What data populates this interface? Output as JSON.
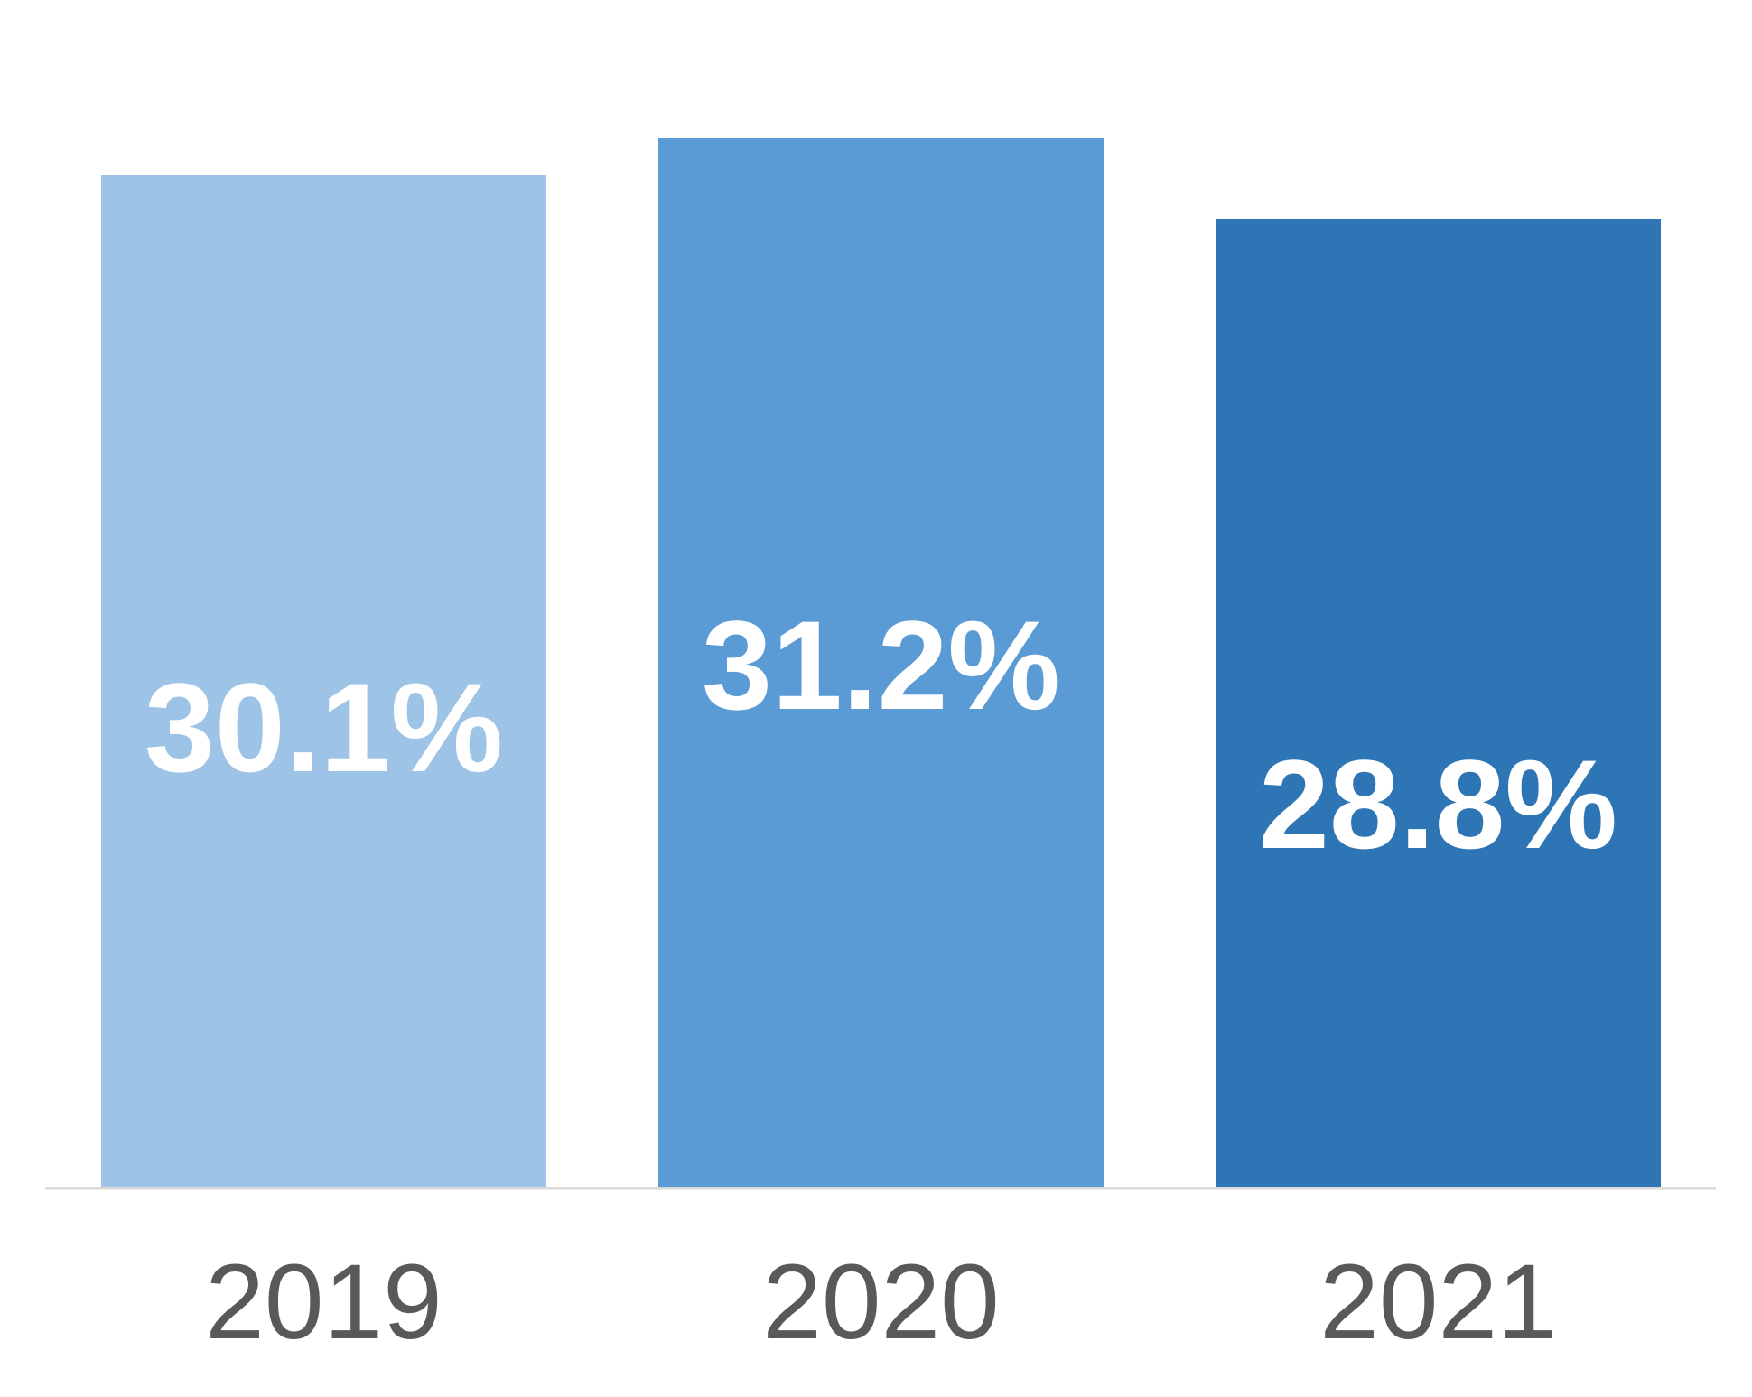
{
  "chart_data": {
    "type": "bar",
    "categories": [
      "2019",
      "2020",
      "2021"
    ],
    "values": [
      30.1,
      31.2,
      28.8
    ],
    "data_labels": [
      "30.1%",
      "31.2%",
      "28.8%"
    ],
    "colors": [
      "#9DC3E6",
      "#5B9BD5",
      "#2E75B6"
    ],
    "axis_color": "#D9D9D9",
    "grid": false,
    "legend": "none"
  }
}
